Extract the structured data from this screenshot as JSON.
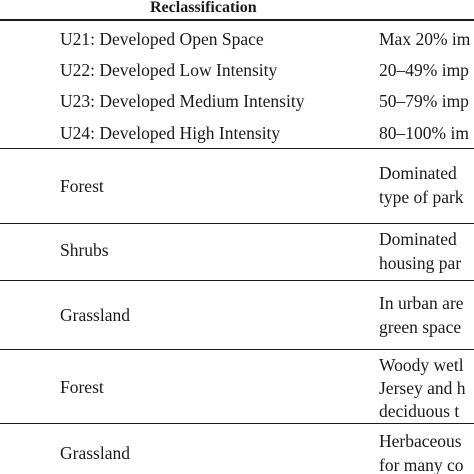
{
  "table": {
    "header": "Reclassification",
    "rows": [
      {
        "col1": "U21: Developed Open Space",
        "col2": [
          "Max 20% im"
        ]
      },
      {
        "col1": "U22: Developed Low Intensity",
        "col2": [
          "20–49% imp"
        ]
      },
      {
        "col1": "U23: Developed Medium Intensity",
        "col2": [
          "50–79% imp"
        ]
      },
      {
        "col1": "U24: Developed High Intensity",
        "col2": [
          "80–100% im"
        ]
      },
      {
        "col1": "Forest",
        "col2": [
          "Dominated",
          "type of park"
        ]
      },
      {
        "col1": "Shrubs",
        "col2": [
          "Dominated",
          "housing par"
        ]
      },
      {
        "col1": "Grassland",
        "col2": [
          "In urban are",
          "green space"
        ]
      },
      {
        "col1": "Forest",
        "col2": [
          "Woody wetl",
          "Jersey and h",
          "deciduous t"
        ]
      },
      {
        "col1": "Grassland",
        "col2": [
          "Herbaceous",
          "for many co"
        ]
      }
    ]
  }
}
